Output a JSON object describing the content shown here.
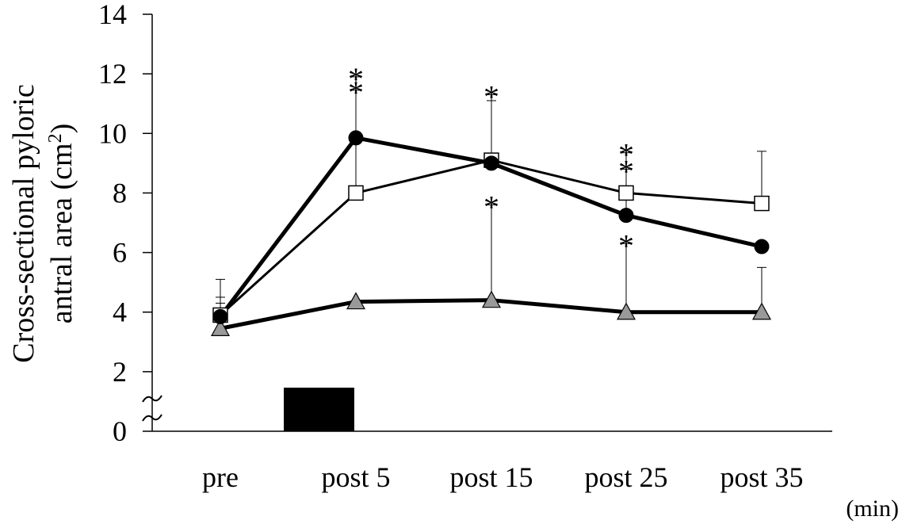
{
  "chart_data": {
    "type": "line",
    "categories": [
      "pre",
      "post 5",
      "post 15",
      "post 25",
      "post 35"
    ],
    "x_unit": "(min)",
    "ylabel_line1": "Cross-sectional pyloric",
    "ylabel_line2_prefix": "antral area (cm",
    "ylabel_sup": "2",
    "ylabel_line2_suffix": ")",
    "ylim": [
      0,
      14
    ],
    "yticks": [
      "0",
      "2",
      "4",
      "6",
      "8",
      "10",
      "12",
      "14"
    ],
    "axis_break": true,
    "intervention_bar": {
      "from": "pre",
      "to": "post 5"
    },
    "series": [
      {
        "marker": "circle-black",
        "values": [
          3.85,
          9.85,
          9.0,
          7.25,
          6.2
        ],
        "error_upper": [
          4.3,
          11.9,
          11.3,
          8.8,
          6.2
        ],
        "significant": [
          false,
          true,
          true,
          true,
          false
        ]
      },
      {
        "marker": "square-white",
        "values": [
          3.9,
          8.0,
          9.1,
          8.0,
          7.65
        ],
        "error_upper": [
          5.1,
          11.45,
          11.1,
          9.35,
          9.4
        ],
        "significant": [
          false,
          true,
          false,
          true,
          false
        ]
      },
      {
        "marker": "triangle-gray",
        "values": [
          3.45,
          4.35,
          4.4,
          4.0,
          4.0
        ],
        "error_upper": [
          4.5,
          4.35,
          7.6,
          6.3,
          5.5
        ],
        "significant": [
          false,
          false,
          true,
          true,
          false
        ]
      }
    ],
    "significance_symbol": "*",
    "colors": {
      "axis": "#000000",
      "triangle": "#999999",
      "square": "#ffffff",
      "circle": "#000000"
    }
  }
}
